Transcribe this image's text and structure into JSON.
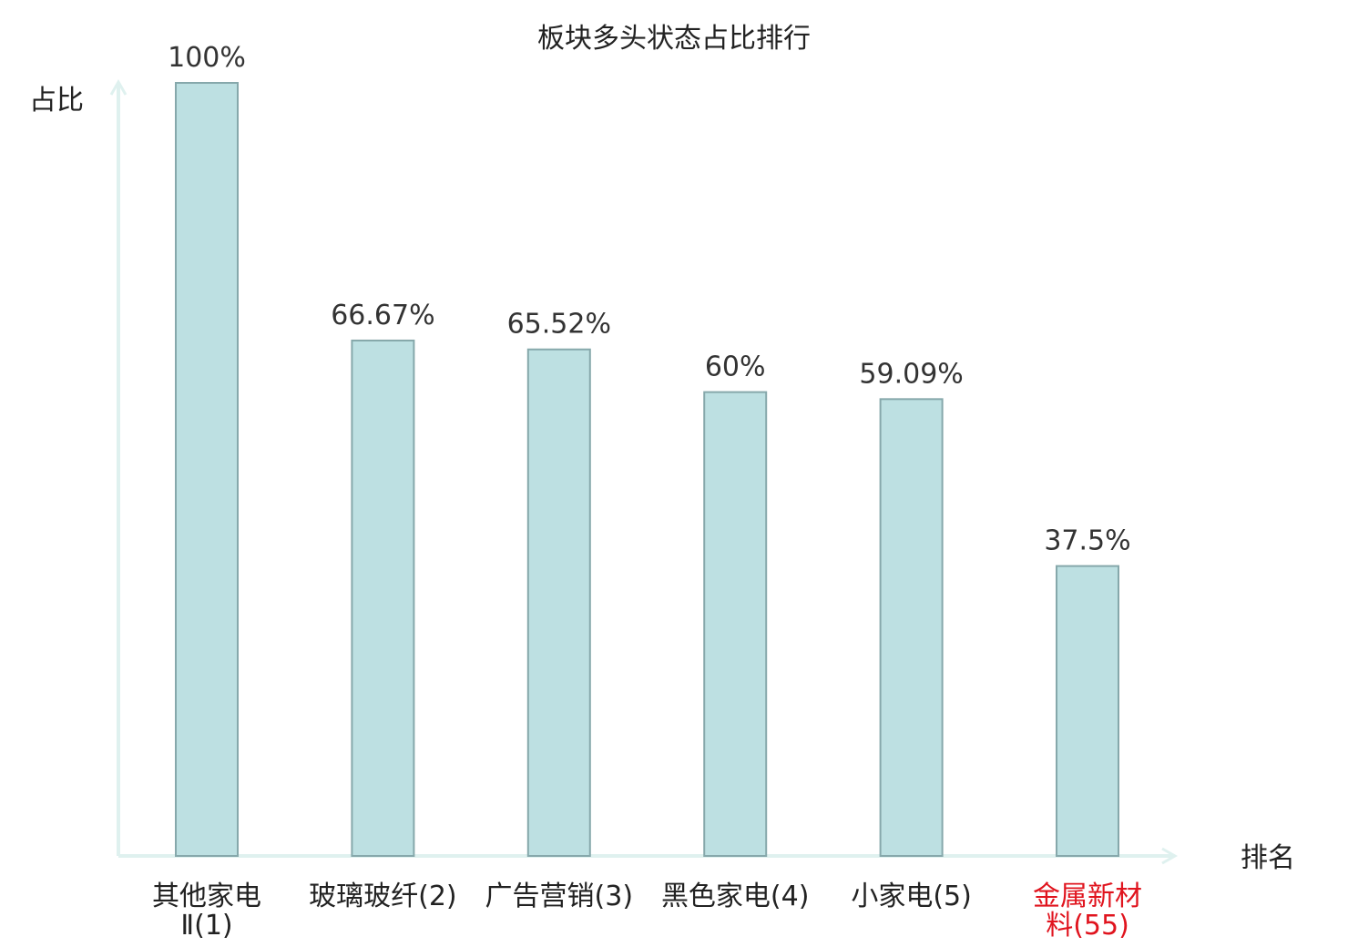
{
  "chart_data": {
    "type": "bar",
    "title": "板块多头状态占比排行",
    "ylabel": "占比",
    "xlabel": "排名",
    "ylim": [
      0,
      100
    ],
    "unit": "%",
    "categories": [
      {
        "name_lines": [
          "其他家电",
          "Ⅱ(1)"
        ],
        "highlight": false
      },
      {
        "name_lines": [
          "玻璃玻纤(2)"
        ],
        "highlight": false
      },
      {
        "name_lines": [
          "广告营销(3)"
        ],
        "highlight": false
      },
      {
        "name_lines": [
          "黑色家电(4)"
        ],
        "highlight": false
      },
      {
        "name_lines": [
          "小家电(5)"
        ],
        "highlight": false
      },
      {
        "name_lines": [
          "金属新材",
          "料(55)"
        ],
        "highlight": true
      }
    ],
    "values": [
      100,
      66.67,
      65.52,
      60,
      59.09,
      37.5
    ],
    "value_labels": [
      "100%",
      "66.67%",
      "65.52%",
      "60%",
      "59.09%",
      "37.5%"
    ],
    "bar_fill": "#bde0e2",
    "bar_stroke": "#86a8ab",
    "axis_color": "#dff1ef",
    "highlight_color": "#e0141e",
    "label_color": "#222222"
  }
}
